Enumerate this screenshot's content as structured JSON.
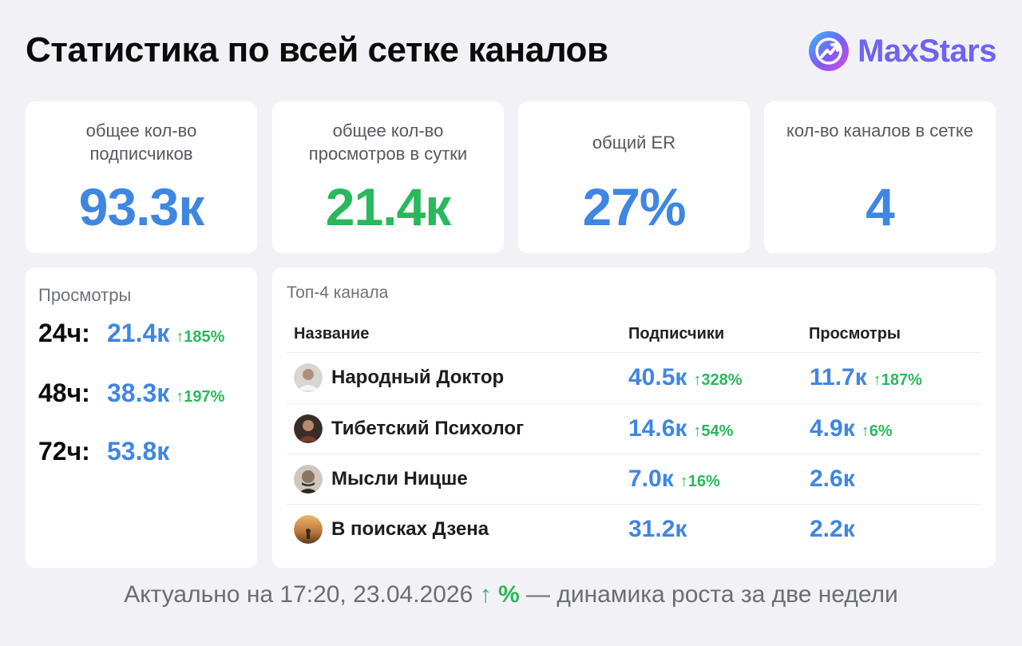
{
  "header": {
    "title": "Статистика по всей сетке каналов",
    "brand": "MaxStars"
  },
  "stats": [
    {
      "label": "общее кол-во подписчиков",
      "value": "93.3к",
      "color": "#3f86e3"
    },
    {
      "label": "общее кол-во просмотров в сутки",
      "value": "21.4к",
      "color": "#29b85c"
    },
    {
      "label": "общий ER",
      "value": "27%",
      "color": "#3f86e3"
    },
    {
      "label": "кол-во каналов в сетке",
      "value": "4",
      "color": "#3f86e3"
    }
  ],
  "views": {
    "title": "Просмотры",
    "rows": [
      {
        "period": "24ч:",
        "value": "21.4к",
        "growth": "185%"
      },
      {
        "period": "48ч:",
        "value": "38.3к",
        "growth": "197%"
      },
      {
        "period": "72ч:",
        "value": "53.8к",
        "growth": ""
      }
    ]
  },
  "top": {
    "title": "Топ-4 канала",
    "columns": [
      "Название",
      "Подписчики",
      "Просмотры"
    ],
    "rows": [
      {
        "name": "Народный Доктор",
        "subs": "40.5к",
        "subs_growth": "328%",
        "views": "11.7к",
        "views_growth": "187%"
      },
      {
        "name": "Тибетский Психолог",
        "subs": "14.6к",
        "subs_growth": "54%",
        "views": "4.9к",
        "views_growth": "6%"
      },
      {
        "name": "Мысли Ницше",
        "subs": "7.0к",
        "subs_growth": "16%",
        "views": "2.6к",
        "views_growth": ""
      },
      {
        "name": "В поисках Дзена",
        "subs": "31.2к",
        "subs_growth": "",
        "views": "2.2к",
        "views_growth": ""
      }
    ]
  },
  "footer": {
    "prefix": "Актуально на 17:20, 23.04.2026",
    "arrow": "↑ %",
    "suffix": "— динамика роста за две недели"
  },
  "colors": {
    "accent_blue": "#3f86e3",
    "accent_green": "#29b85c",
    "brand": "#6f63f0",
    "background": "#f2f2f6"
  }
}
